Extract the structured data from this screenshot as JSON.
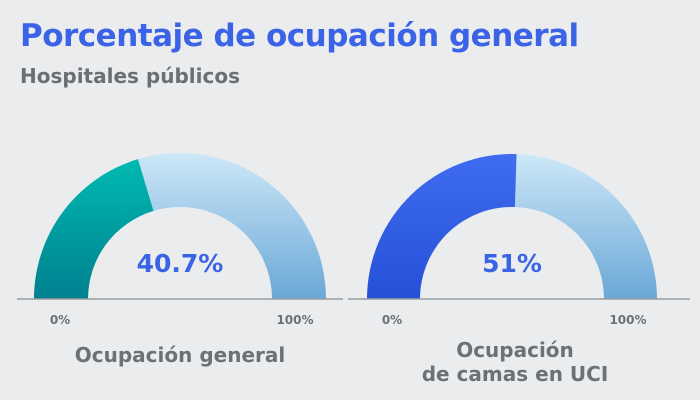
{
  "title": "Porcentaje de ocupación general",
  "subtitle": "Hospitales públicos",
  "chart_data": [
    {
      "type": "gauge",
      "value": 40.7,
      "min": 0,
      "max": 100,
      "value_label": "40.7%",
      "min_label": "0%",
      "max_label": "100%",
      "label": "Ocupación general",
      "fill_color": "#00a89f",
      "track_color": "#b8dcf2"
    },
    {
      "type": "gauge",
      "value": 51,
      "min": 0,
      "max": 100,
      "value_label": "51%",
      "min_label": "0%",
      "max_label": "100%",
      "label": "Ocupación de camas en UCI",
      "fill_color": "#3a63e6",
      "track_color": "#b8dcf2"
    }
  ]
}
